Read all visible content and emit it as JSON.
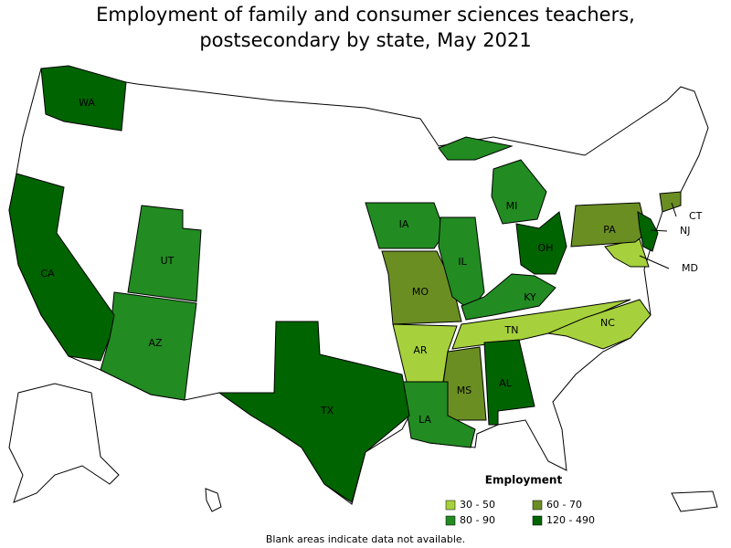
{
  "title": "Employment of family and consumer sciences teachers, postsecondary by state, May 2021",
  "legend": {
    "title": "Employment",
    "items": [
      {
        "label": "30 - 50",
        "color": "#a6d13c",
        "states": [
          "AR",
          "TN",
          "NC",
          "MD"
        ]
      },
      {
        "label": "60 - 70",
        "color": "#6b8e23",
        "states": [
          "PA",
          "CT",
          "MO",
          "MS"
        ]
      },
      {
        "label": "80 - 90",
        "color": "#228b22",
        "states": [
          "UT",
          "AZ",
          "IA",
          "IL",
          "MI",
          "KY",
          "LA"
        ]
      },
      {
        "label": "120 - 490",
        "color": "#006400",
        "states": [
          "WA",
          "CA",
          "TX",
          "OH",
          "AL",
          "NJ"
        ]
      }
    ]
  },
  "footnote": "Blank areas indicate data not available."
}
